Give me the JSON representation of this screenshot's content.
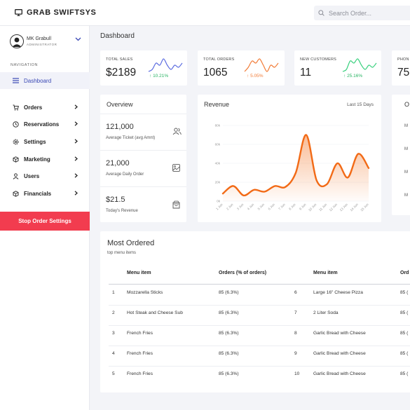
{
  "app": {
    "brand": "GRAB SWIFTSYS"
  },
  "search": {
    "placeholder": "Search Order..."
  },
  "user": {
    "name": "MK Grabull",
    "role": "ADMINISTRATOR"
  },
  "sidebar": {
    "nav_label": "NAVIGATION",
    "items": [
      {
        "label": "Dashboard",
        "icon": "menu-lines-icon",
        "active": true
      },
      {
        "label": "Orders",
        "icon": "cart-icon"
      },
      {
        "label": "Reservations",
        "icon": "clock-icon"
      },
      {
        "label": "Settings",
        "icon": "gear-icon"
      },
      {
        "label": "Marketing",
        "icon": "box-icon"
      },
      {
        "label": "Users",
        "icon": "user-icon"
      },
      {
        "label": "Financials",
        "icon": "box-icon"
      }
    ],
    "stop_button": "Stop Order Settings"
  },
  "page": {
    "title": "Dashboard"
  },
  "stats": [
    {
      "label": "TOTAL SALES",
      "value": "$2189",
      "pct": "10.21%",
      "dir": "up",
      "color": "#5a6be0",
      "pct_color": "#28b463",
      "spark": [
        4,
        5,
        8,
        7,
        10,
        7,
        5,
        7,
        6,
        8
      ]
    },
    {
      "label": "TOTAL ORDERS",
      "value": "1065",
      "pct": "5.05%",
      "dir": "up",
      "color": "#f27b36",
      "pct_color": "#f27b36",
      "spark": [
        4,
        6,
        9,
        8,
        10,
        7,
        4,
        7,
        6,
        8
      ]
    },
    {
      "label": "NEW CUSTOMERS",
      "value": "11",
      "pct": "25.16%",
      "dir": "up",
      "color": "#38d07d",
      "pct_color": "#28b463",
      "spark": [
        4,
        5,
        9,
        8,
        10,
        7,
        5,
        7,
        6,
        8
      ]
    },
    {
      "label": "PHON",
      "value": "75"
    }
  ],
  "overview": {
    "title": "Overview",
    "rows": [
      {
        "value": "121,000",
        "label": "Average Ticket (avg Amnt)",
        "icon": "users-icon"
      },
      {
        "value": "21,000",
        "label": "Average Daily Order",
        "icon": "image-icon"
      },
      {
        "value": "$21.5",
        "label": "Today's Revenue",
        "icon": "bag-icon"
      }
    ]
  },
  "revenue": {
    "title": "Revenue",
    "period": "Last 15 Days"
  },
  "chart_data": {
    "type": "area",
    "title": "Revenue",
    "x": [
      "1 Jun",
      "2 Jun",
      "3 Jun",
      "4 Jun",
      "5 Jun",
      "6 Jun",
      "7 Jun",
      "8 Jun",
      "9 Jun",
      "10 Jun",
      "11 Jun",
      "12 Jun",
      "13 Jun",
      "14 Jun",
      "15 Jun"
    ],
    "series": [
      {
        "values": [
          8000,
          16000,
          6000,
          12000,
          10000,
          16000,
          15000,
          30000,
          70000,
          22000,
          18000,
          40000,
          25000,
          50000,
          35000
        ]
      }
    ],
    "ylim": [
      0,
      80000
    ],
    "yticks": [
      "0k",
      "20k",
      "40k",
      "60k",
      "80k"
    ],
    "color": "#f26a16"
  },
  "right_panel": {
    "title": "O",
    "rows": [
      "M",
      "M",
      "M",
      "M"
    ]
  },
  "most_ordered": {
    "title": "Most Ordered",
    "subtitle": "top menu items",
    "headers": [
      "Menu item",
      "Orders (% of orders)",
      "Menu item",
      "Ord"
    ],
    "rows": [
      {
        "n1": "1",
        "item1": "Mozzarella Sticks",
        "orders1": "85 (6.3%)",
        "n2": "6",
        "item2": "Large 16\" Cheese Pizza",
        "orders2": "85 ("
      },
      {
        "n1": "2",
        "item1": "Hot Steak and Cheese Sub",
        "orders1": "85 (6.3%)",
        "n2": "7",
        "item2": "2 Liter Soda",
        "orders2": "85 ("
      },
      {
        "n1": "3",
        "item1": "French Fries",
        "orders1": "85 (6.3%)",
        "n2": "8",
        "item2": "Garlic Bread with Cheese",
        "orders2": "85 ("
      },
      {
        "n1": "4",
        "item1": "French Fries",
        "orders1": "85 (6.3%)",
        "n2": "9",
        "item2": "Garlic Bread with Cheese",
        "orders2": "85 ("
      },
      {
        "n1": "5",
        "item1": "French Fries",
        "orders1": "85 (6.3%)",
        "n2": "10",
        "item2": "Garlic Bread with Cheese",
        "orders2": "85 ("
      }
    ]
  }
}
